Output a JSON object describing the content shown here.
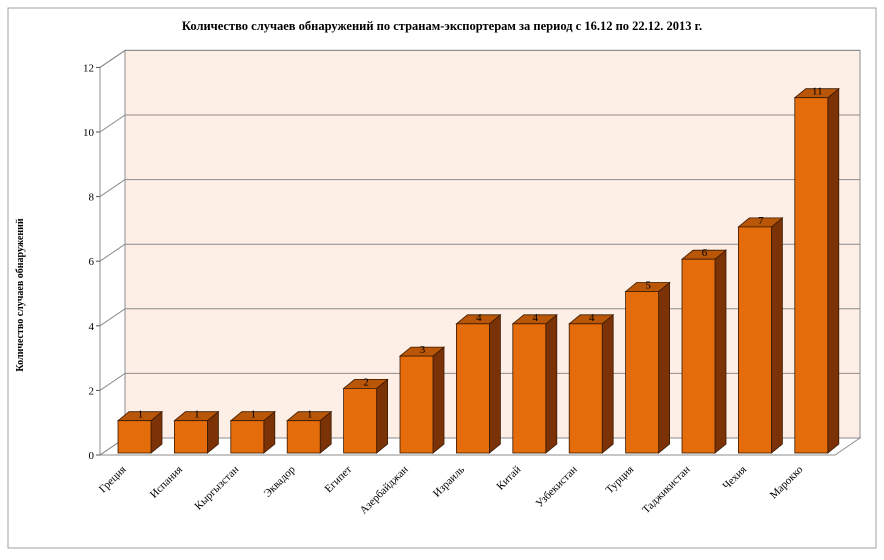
{
  "chart_data": {
    "type": "bar",
    "title": "Количество случаев обнаружений по странам-экспортерам за период с 16.12 по 22.12. 2013 г.",
    "xlabel": "",
    "ylabel": "Количество случаев обнаружений",
    "categories": [
      "Греция",
      "Испания",
      "Кыргызстан",
      "Эквадор",
      "Египет",
      "Азербайджан",
      "Израиль",
      "Китай",
      "Узбекистан",
      "Турция",
      "Таджикистан",
      "Чехия",
      "Марокко"
    ],
    "values": [
      1,
      1,
      1,
      1,
      2,
      3,
      4,
      4,
      4,
      5,
      6,
      7,
      11
    ],
    "ylim": [
      0,
      12
    ],
    "yticks": [
      0,
      2,
      4,
      6,
      8,
      10,
      12
    ],
    "grid": true,
    "three_d": true,
    "colors": {
      "bar_front": "#e46c0a",
      "bar_side": "#7a3206",
      "bar_top": "#b95607",
      "bar_outline": "#3a1a02",
      "back_wall": "#fdeee6",
      "grid": "#8c8c8c"
    }
  }
}
